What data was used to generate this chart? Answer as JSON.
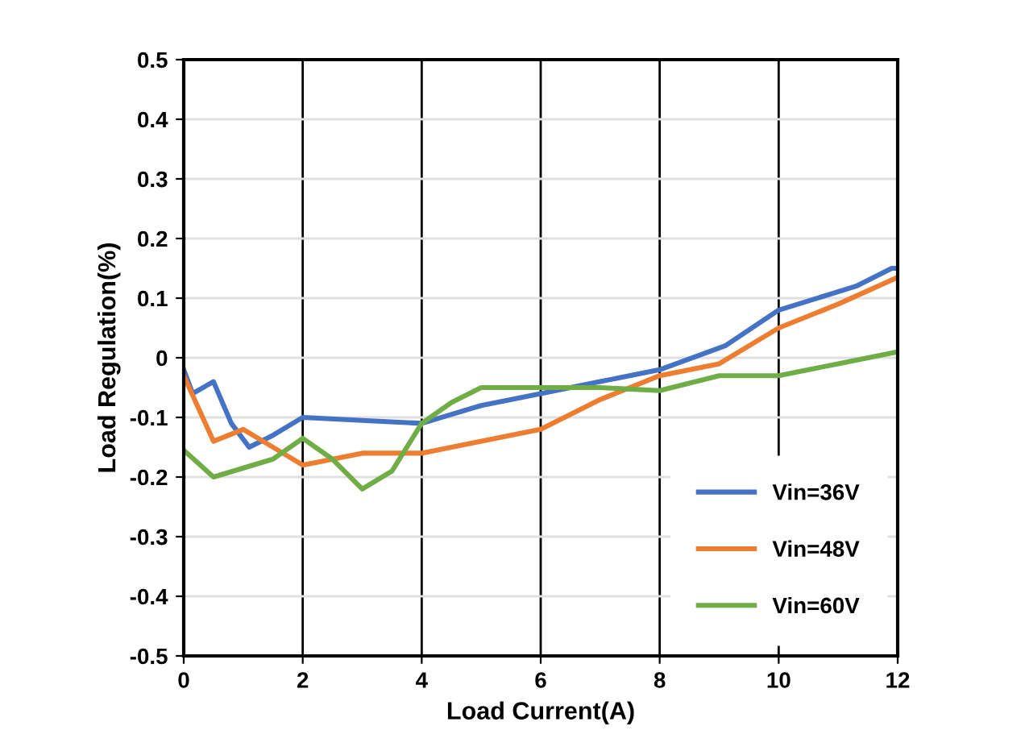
{
  "chart_data": {
    "type": "line",
    "xlabel": "Load Current(A)",
    "ylabel": "Load Regulation(%)",
    "xlim": [
      0,
      12
    ],
    "xticks": [
      0,
      2,
      4,
      6,
      8,
      10,
      12
    ],
    "ylim": [
      -0.5,
      0.5
    ],
    "yticks": [
      {
        "value": -0.5,
        "label": "-0.5"
      },
      {
        "value": -0.4,
        "label": "-0.4"
      },
      {
        "value": -0.3,
        "label": "-0.3"
      },
      {
        "value": -0.2,
        "label": "-0.2"
      },
      {
        "value": -0.1,
        "label": "-0.1"
      },
      0,
      0.1,
      0.2,
      0.3,
      0.4,
      0.5
    ],
    "grid": true,
    "legend": "bottom right",
    "line_style": "solid",
    "series": [
      {
        "name": "Vin=36V",
        "color": "#4472c4",
        "x": [
          0,
          0.15,
          0.5,
          0.8,
          1.1,
          1.5,
          2,
          3,
          4,
          5,
          6,
          7,
          8,
          9.1,
          10,
          11.3,
          11.9,
          12
        ],
        "values": [
          -0.02,
          -0.06,
          -0.04,
          -0.11,
          -0.15,
          -0.13,
          -0.1,
          -0.105,
          -0.11,
          -0.08,
          -0.06,
          -0.04,
          -0.02,
          0.02,
          0.08,
          0.12,
          0.15,
          0.15
        ]
      },
      {
        "name": "Vin=48V",
        "color": "#ed7d31",
        "x": [
          0,
          0.5,
          1.0,
          1.5,
          2,
          3,
          4,
          4.5,
          6,
          7,
          8,
          9,
          10,
          11,
          12
        ],
        "values": [
          -0.03,
          -0.14,
          -0.12,
          -0.15,
          -0.18,
          -0.16,
          -0.16,
          -0.15,
          -0.12,
          -0.07,
          -0.03,
          -0.01,
          0.05,
          0.09,
          0.135
        ]
      },
      {
        "name": "Vin=60V",
        "color": "#70ad47",
        "x": [
          0,
          0.5,
          1.5,
          2,
          2.5,
          3,
          3.5,
          4,
          4.5,
          5,
          6,
          7,
          8,
          9,
          10,
          11,
          12
        ],
        "values": [
          -0.155,
          -0.2,
          -0.17,
          -0.135,
          -0.17,
          -0.22,
          -0.19,
          -0.11,
          -0.075,
          -0.05,
          -0.05,
          -0.05,
          -0.055,
          -0.03,
          -0.03,
          -0.01,
          0.01
        ]
      }
    ]
  }
}
